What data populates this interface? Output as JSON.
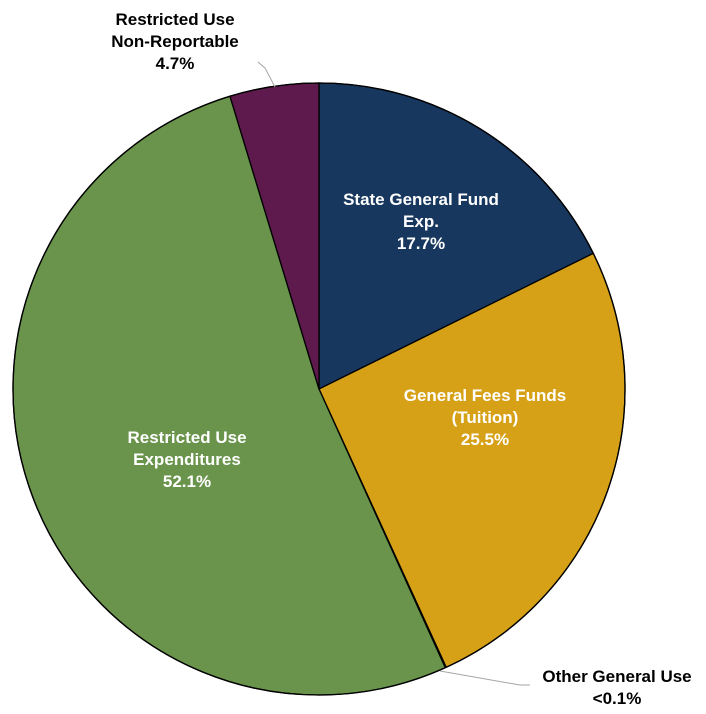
{
  "chart_data": {
    "type": "pie",
    "title": "",
    "start_angle_deg": 0,
    "direction": "clockwise",
    "slices": [
      {
        "label_lines": [
          "State General Fund",
          "Exp."
        ],
        "percent_label": "17.7%",
        "value": 17.7,
        "color": "#17375e",
        "label_color": "#ffffff",
        "label_position": "inside"
      },
      {
        "label_lines": [
          "General Fees Funds",
          "(Tuition)"
        ],
        "percent_label": "25.5%",
        "value": 25.5,
        "color": "#d6a117",
        "label_color": "#ffffff",
        "label_position": "inside"
      },
      {
        "label_lines": [
          "Other General Use"
        ],
        "percent_label": "<0.1%",
        "value": 0.05,
        "color": "#9bbb59",
        "label_color": "#000000",
        "label_position": "outside-bottom-right"
      },
      {
        "label_lines": [
          "Restricted Use",
          "Expenditures"
        ],
        "percent_label": "52.1%",
        "value": 52.1,
        "color": "#6a944b",
        "label_color": "#ffffff",
        "label_position": "inside"
      },
      {
        "label_lines": [
          "Restricted Use",
          "Non-Reportable"
        ],
        "percent_label": "4.7%",
        "value": 4.7,
        "color": "#5e1a4c",
        "label_color": "#000000",
        "label_position": "outside-top"
      }
    ]
  }
}
